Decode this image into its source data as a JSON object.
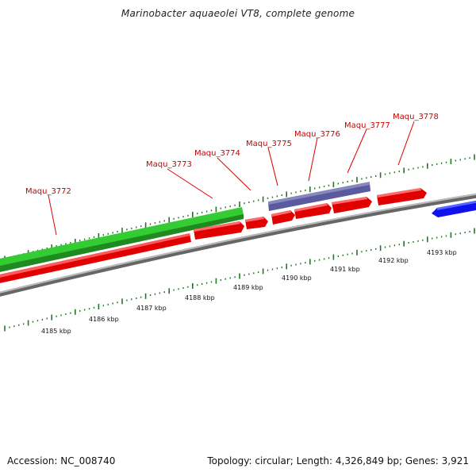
{
  "title": "Marinobacter aquaeolei VT8, complete genome",
  "footer": {
    "accession": "Accession: NC_008740",
    "summary": "Topology: circular; Length: 4,326,849 bp; Genes: 3,921"
  },
  "colors": {
    "forward_strand": "#e00000",
    "highlight_green": "#22bb22",
    "highlight_purple": "#555599",
    "reverse_strand": "#1111ee",
    "backbone": "#888888",
    "tick": "#227722",
    "label": "#cc0000"
  },
  "scale_labels": [
    "4185 kbp",
    "4186 kbp",
    "4187 kbp",
    "4188 kbp",
    "4189 kbp",
    "4190 kbp",
    "4191 kbp",
    "4192 kbp",
    "4193 kbp"
  ],
  "gene_labels": [
    "Maqu_3772",
    "Maqu_3773",
    "Maqu_3774",
    "Maqu_3775",
    "Maqu_3776",
    "Maqu_3777",
    "Maqu_3778"
  ]
}
